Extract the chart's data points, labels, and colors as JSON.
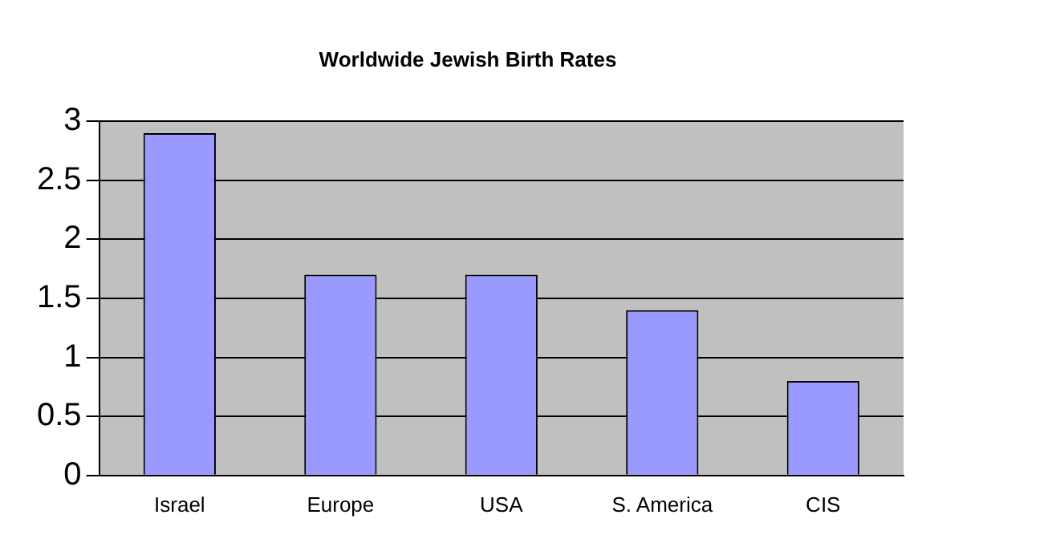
{
  "chart_data": {
    "type": "bar",
    "title": "Worldwide Jewish Birth Rates",
    "categories": [
      "Israel",
      "Europe",
      "USA",
      "S. America",
      "CIS"
    ],
    "values": [
      2.9,
      1.7,
      1.7,
      1.4,
      0.8
    ],
    "color": "#9999ff",
    "ylim": [
      0,
      3
    ],
    "yticks": [
      0,
      0.5,
      1,
      1.5,
      2,
      2.5,
      3
    ],
    "grid": "y",
    "legend": false
  }
}
